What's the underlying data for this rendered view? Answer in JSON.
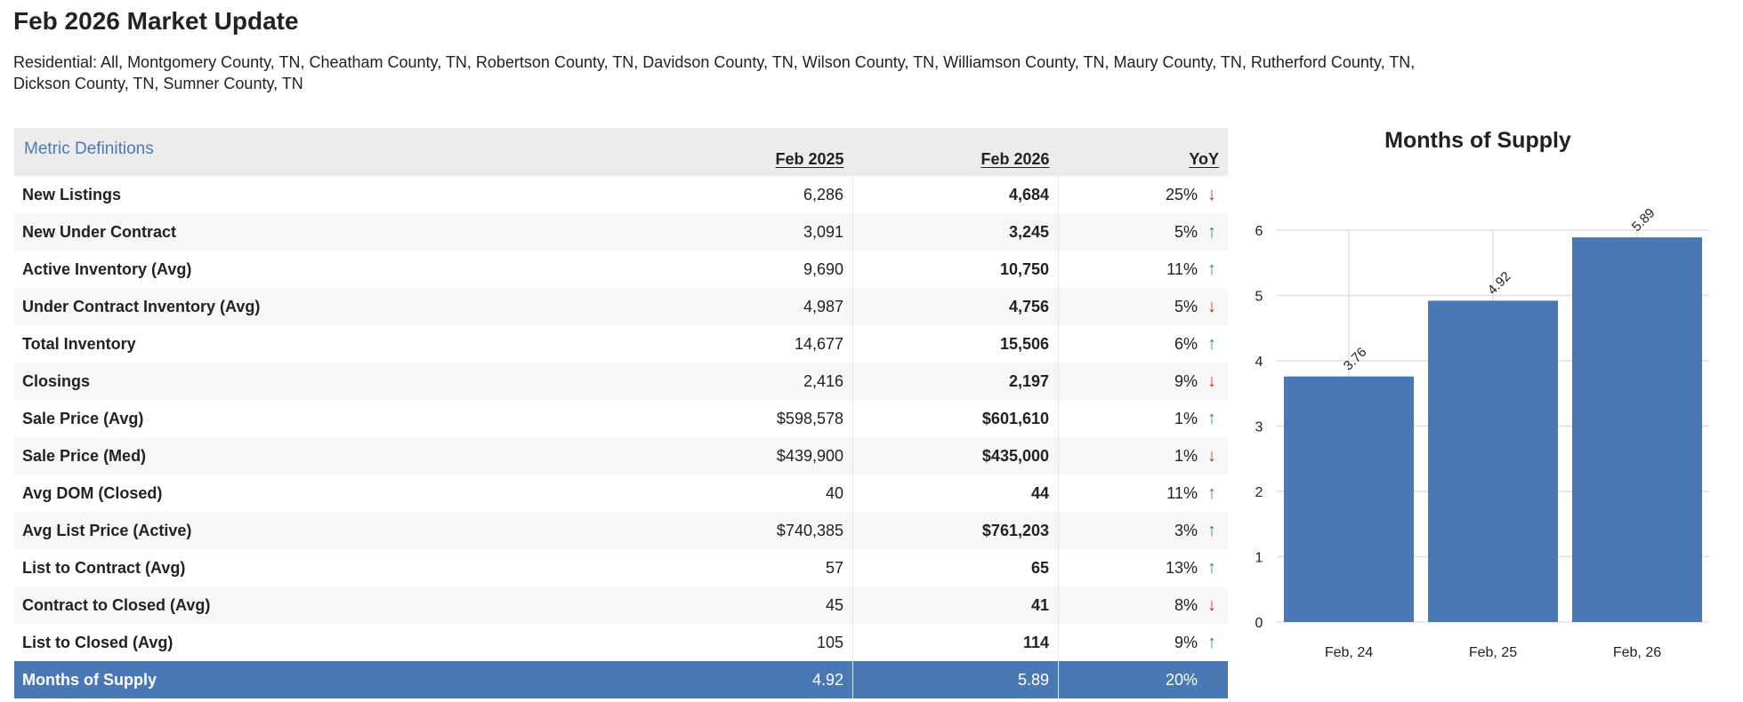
{
  "header": {
    "title": "Feb 2026 Market Update",
    "subtitle": "Residential: All, Montgomery County, TN, Cheatham County, TN, Robertson County, TN, Davidson County, TN, Wilson County, TN, Williamson County, TN, Maury County, TN, Rutherford County, TN, Dickson County, TN, Sumner County, TN"
  },
  "table": {
    "definitions_link": "Metric Definitions",
    "columns": [
      "Feb 2025",
      "Feb 2026",
      "YoY"
    ],
    "colors": {
      "down": "#b23a3a",
      "up": "#3b8a5a",
      "highlight": "#4a78b4"
    },
    "rows": [
      {
        "metric": "New Listings",
        "prev": "6,286",
        "curr": "4,684",
        "yoy": "25%",
        "dir": "down"
      },
      {
        "metric": "New Under Contract",
        "prev": "3,091",
        "curr": "3,245",
        "yoy": "5%",
        "dir": "up"
      },
      {
        "metric": "Active Inventory (Avg)",
        "prev": "9,690",
        "curr": "10,750",
        "yoy": "11%",
        "dir": "up"
      },
      {
        "metric": "Under Contract Inventory (Avg)",
        "prev": "4,987",
        "curr": "4,756",
        "yoy": "5%",
        "dir": "down"
      },
      {
        "metric": "Total Inventory",
        "prev": "14,677",
        "curr": "15,506",
        "yoy": "6%",
        "dir": "up"
      },
      {
        "metric": "Closings",
        "prev": "2,416",
        "curr": "2,197",
        "yoy": "9%",
        "dir": "down"
      },
      {
        "metric": "Sale Price (Avg)",
        "prev": "$598,578",
        "curr": "$601,610",
        "yoy": "1%",
        "dir": "up"
      },
      {
        "metric": "Sale Price (Med)",
        "prev": "$439,900",
        "curr": "$435,000",
        "yoy": "1%",
        "dir": "down"
      },
      {
        "metric": "Avg DOM (Closed)",
        "prev": "40",
        "curr": "44",
        "yoy": "11%",
        "dir": "up"
      },
      {
        "metric": "Avg List Price (Active)",
        "prev": "$740,385",
        "curr": "$761,203",
        "yoy": "3%",
        "dir": "up"
      },
      {
        "metric": "List to Contract (Avg)",
        "prev": "57",
        "curr": "65",
        "yoy": "13%",
        "dir": "up"
      },
      {
        "metric": "Contract to Closed (Avg)",
        "prev": "45",
        "curr": "41",
        "yoy": "8%",
        "dir": "down"
      },
      {
        "metric": "List to Closed (Avg)",
        "prev": "105",
        "curr": "114",
        "yoy": "9%",
        "dir": "up"
      },
      {
        "metric": "Months of Supply",
        "prev": "4.92",
        "curr": "5.89",
        "yoy": "20%",
        "dir": "up",
        "highlight": true
      }
    ]
  },
  "chart_data": {
    "type": "bar",
    "title": "Months of Supply",
    "categories": [
      "Feb, 24",
      "Feb, 25",
      "Feb, 26"
    ],
    "values": [
      3.76,
      4.92,
      5.89
    ],
    "data_labels": [
      "3.76",
      "4.92",
      "5.89"
    ],
    "yticks": [
      0,
      1,
      2,
      3,
      4,
      5,
      6
    ],
    "ylim": [
      0,
      6
    ],
    "grid": true,
    "color": "#4a78b4"
  }
}
